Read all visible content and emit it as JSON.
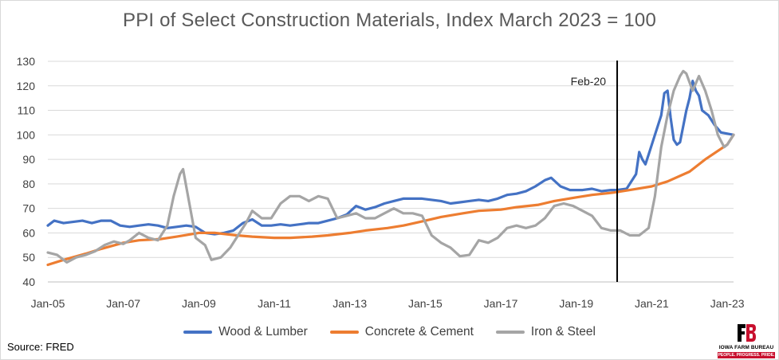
{
  "chart_data": {
    "type": "line",
    "title": "PPI of Select Construction Materials, Index March 2023 = 100",
    "xlabel": "",
    "ylabel": "",
    "ylim": [
      40,
      130
    ],
    "yticks": [
      40,
      50,
      60,
      70,
      80,
      90,
      100,
      110,
      120,
      130
    ],
    "xrange": [
      "2005-01",
      "2023-03"
    ],
    "x_tick_labels": [
      "Jan-05",
      "Jan-07",
      "Jan-09",
      "Jan-11",
      "Jan-13",
      "Jan-15",
      "Jan-17",
      "Jan-19",
      "Jan-21",
      "Jan-23"
    ],
    "grid": "horizontal",
    "legend_position": "bottom",
    "annotation": {
      "date": "2020-02",
      "label": "Feb-20",
      "type": "vertical-line"
    },
    "series": [
      {
        "name": "Wood & Lumber",
        "color": "#4472c4",
        "points": [
          [
            "2005-01",
            63
          ],
          [
            "2005-03",
            65
          ],
          [
            "2005-06",
            64
          ],
          [
            "2005-09",
            64.5
          ],
          [
            "2005-12",
            65
          ],
          [
            "2006-03",
            64
          ],
          [
            "2006-06",
            65
          ],
          [
            "2006-09",
            65
          ],
          [
            "2006-12",
            63
          ],
          [
            "2007-03",
            62.5
          ],
          [
            "2007-06",
            63
          ],
          [
            "2007-09",
            63.5
          ],
          [
            "2007-12",
            63
          ],
          [
            "2008-03",
            62
          ],
          [
            "2008-06",
            62.5
          ],
          [
            "2008-09",
            63
          ],
          [
            "2008-12",
            62.5
          ],
          [
            "2009-03",
            60
          ],
          [
            "2009-06",
            59.5
          ],
          [
            "2009-09",
            60
          ],
          [
            "2009-12",
            61
          ],
          [
            "2010-03",
            64
          ],
          [
            "2010-06",
            65.5
          ],
          [
            "2010-09",
            63
          ],
          [
            "2010-12",
            63
          ],
          [
            "2011-03",
            63.5
          ],
          [
            "2011-06",
            63
          ],
          [
            "2011-09",
            63.5
          ],
          [
            "2011-12",
            64
          ],
          [
            "2012-03",
            64
          ],
          [
            "2012-06",
            65
          ],
          [
            "2012-09",
            66
          ],
          [
            "2012-12",
            67.5
          ],
          [
            "2013-03",
            71
          ],
          [
            "2013-06",
            69.5
          ],
          [
            "2013-09",
            70.5
          ],
          [
            "2013-12",
            72
          ],
          [
            "2014-03",
            73
          ],
          [
            "2014-06",
            74
          ],
          [
            "2014-09",
            74
          ],
          [
            "2014-12",
            74
          ],
          [
            "2015-03",
            73.5
          ],
          [
            "2015-06",
            73
          ],
          [
            "2015-09",
            72
          ],
          [
            "2015-12",
            72.5
          ],
          [
            "2016-03",
            73
          ],
          [
            "2016-06",
            73.5
          ],
          [
            "2016-09",
            73
          ],
          [
            "2016-12",
            74
          ],
          [
            "2017-03",
            75.5
          ],
          [
            "2017-06",
            76
          ],
          [
            "2017-09",
            77
          ],
          [
            "2017-12",
            79
          ],
          [
            "2018-03",
            81.5
          ],
          [
            "2018-05",
            82.5
          ],
          [
            "2018-08",
            79
          ],
          [
            "2018-11",
            77.5
          ],
          [
            "2019-03",
            77.5
          ],
          [
            "2019-06",
            78
          ],
          [
            "2019-09",
            77
          ],
          [
            "2019-12",
            77.5
          ],
          [
            "2020-02",
            77.5
          ],
          [
            "2020-05",
            78
          ],
          [
            "2020-08",
            84
          ],
          [
            "2020-09",
            93
          ],
          [
            "2020-10",
            90
          ],
          [
            "2020-11",
            88
          ],
          [
            "2020-12",
            92
          ],
          [
            "2021-02",
            100
          ],
          [
            "2021-04",
            108
          ],
          [
            "2021-05",
            117
          ],
          [
            "2021-06",
            118
          ],
          [
            "2021-07",
            107
          ],
          [
            "2021-08",
            98
          ],
          [
            "2021-09",
            96
          ],
          [
            "2021-10",
            97
          ],
          [
            "2021-12",
            110
          ],
          [
            "2022-01",
            115
          ],
          [
            "2022-02",
            122
          ],
          [
            "2022-03",
            118
          ],
          [
            "2022-04",
            116
          ],
          [
            "2022-05",
            110
          ],
          [
            "2022-07",
            108
          ],
          [
            "2022-09",
            104
          ],
          [
            "2022-11",
            101
          ],
          [
            "2023-01",
            100.5
          ],
          [
            "2023-03",
            100
          ]
        ]
      },
      {
        "name": "Concrete & Cement",
        "color": "#ed7d31",
        "points": [
          [
            "2005-01",
            47
          ],
          [
            "2005-06",
            49
          ],
          [
            "2006-01",
            51.5
          ],
          [
            "2006-06",
            53.5
          ],
          [
            "2007-01",
            56
          ],
          [
            "2007-06",
            57
          ],
          [
            "2008-01",
            57.5
          ],
          [
            "2008-06",
            58.5
          ],
          [
            "2009-01",
            60
          ],
          [
            "2009-06",
            60
          ],
          [
            "2010-01",
            59
          ],
          [
            "2010-06",
            58.5
          ],
          [
            "2011-01",
            58
          ],
          [
            "2011-06",
            58
          ],
          [
            "2012-01",
            58.5
          ],
          [
            "2012-06",
            59
          ],
          [
            "2013-01",
            60
          ],
          [
            "2013-06",
            61
          ],
          [
            "2014-01",
            62
          ],
          [
            "2014-06",
            63
          ],
          [
            "2015-01",
            65
          ],
          [
            "2015-06",
            66.5
          ],
          [
            "2016-01",
            68
          ],
          [
            "2016-06",
            69
          ],
          [
            "2017-01",
            69.5
          ],
          [
            "2017-06",
            70.5
          ],
          [
            "2018-01",
            71.5
          ],
          [
            "2018-06",
            73
          ],
          [
            "2019-01",
            74.5
          ],
          [
            "2019-06",
            75.5
          ],
          [
            "2020-01",
            76.5
          ],
          [
            "2020-06",
            77.5
          ],
          [
            "2021-01",
            79
          ],
          [
            "2021-06",
            81
          ],
          [
            "2022-01",
            85
          ],
          [
            "2022-06",
            90
          ],
          [
            "2023-01",
            96
          ],
          [
            "2023-03",
            100
          ]
        ]
      },
      {
        "name": "Iron & Steel",
        "color": "#a5a5a5",
        "points": [
          [
            "2005-01",
            52
          ],
          [
            "2005-04",
            51
          ],
          [
            "2005-07",
            48
          ],
          [
            "2005-10",
            50
          ],
          [
            "2006-01",
            51
          ],
          [
            "2006-04",
            52.5
          ],
          [
            "2006-07",
            55
          ],
          [
            "2006-10",
            56.5
          ],
          [
            "2007-01",
            55.5
          ],
          [
            "2007-03",
            57
          ],
          [
            "2007-06",
            60
          ],
          [
            "2007-09",
            58
          ],
          [
            "2007-12",
            57
          ],
          [
            "2008-03",
            63
          ],
          [
            "2008-05",
            75
          ],
          [
            "2008-07",
            84
          ],
          [
            "2008-08",
            86
          ],
          [
            "2008-10",
            72
          ],
          [
            "2008-12",
            58
          ],
          [
            "2009-03",
            55
          ],
          [
            "2009-05",
            49
          ],
          [
            "2009-08",
            50
          ],
          [
            "2009-11",
            54
          ],
          [
            "2010-02",
            60
          ],
          [
            "2010-04",
            64
          ],
          [
            "2010-06",
            69
          ],
          [
            "2010-09",
            66
          ],
          [
            "2010-12",
            66
          ],
          [
            "2011-03",
            72
          ],
          [
            "2011-06",
            75
          ],
          [
            "2011-09",
            75
          ],
          [
            "2011-12",
            73
          ],
          [
            "2012-03",
            75
          ],
          [
            "2012-06",
            74
          ],
          [
            "2012-09",
            66
          ],
          [
            "2012-12",
            67
          ],
          [
            "2013-03",
            68
          ],
          [
            "2013-06",
            66
          ],
          [
            "2013-09",
            66
          ],
          [
            "2013-12",
            68
          ],
          [
            "2014-03",
            70
          ],
          [
            "2014-06",
            68
          ],
          [
            "2014-09",
            68
          ],
          [
            "2014-12",
            67
          ],
          [
            "2015-03",
            59
          ],
          [
            "2015-06",
            56
          ],
          [
            "2015-09",
            54
          ],
          [
            "2015-12",
            50.5
          ],
          [
            "2016-03",
            51
          ],
          [
            "2016-06",
            57
          ],
          [
            "2016-09",
            56
          ],
          [
            "2016-12",
            58
          ],
          [
            "2017-03",
            62
          ],
          [
            "2017-06",
            63
          ],
          [
            "2017-09",
            62
          ],
          [
            "2017-12",
            63
          ],
          [
            "2018-03",
            66
          ],
          [
            "2018-06",
            71
          ],
          [
            "2018-09",
            72
          ],
          [
            "2018-12",
            71
          ],
          [
            "2019-03",
            69
          ],
          [
            "2019-06",
            67
          ],
          [
            "2019-09",
            62
          ],
          [
            "2019-12",
            61
          ],
          [
            "2020-03",
            61
          ],
          [
            "2020-06",
            59
          ],
          [
            "2020-09",
            59
          ],
          [
            "2020-12",
            62
          ],
          [
            "2021-02",
            75
          ],
          [
            "2021-04",
            95
          ],
          [
            "2021-06",
            108
          ],
          [
            "2021-08",
            118
          ],
          [
            "2021-10",
            124
          ],
          [
            "2021-11",
            126
          ],
          [
            "2021-12",
            125
          ],
          [
            "2022-02",
            118
          ],
          [
            "2022-04",
            124
          ],
          [
            "2022-06",
            118
          ],
          [
            "2022-08",
            110
          ],
          [
            "2022-10",
            100
          ],
          [
            "2022-12",
            95
          ],
          [
            "2023-01",
            96
          ],
          [
            "2023-03",
            100
          ]
        ]
      }
    ]
  },
  "source_text": "Source: FRED",
  "logo": {
    "name": "IOWA FARM BUREAU",
    "tagline": "PEOPLE. PROGRESS. PRIDE.",
    "brand_color": "#c8102e"
  }
}
